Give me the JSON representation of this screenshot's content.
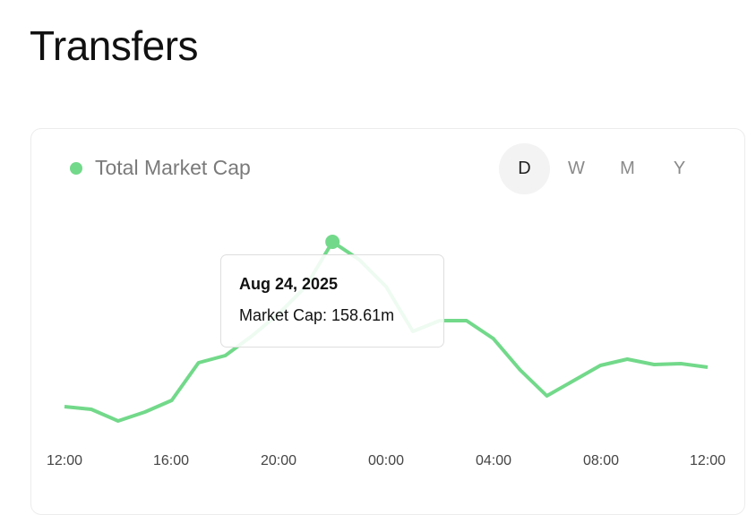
{
  "page": {
    "title": "Transfers"
  },
  "colors": {
    "series": "#72d98a",
    "active_bg": "#f3f3f3"
  },
  "periods": [
    {
      "label": "D",
      "active": true
    },
    {
      "label": "W",
      "active": false
    },
    {
      "label": "M",
      "active": false
    },
    {
      "label": "Y",
      "active": false
    }
  ],
  "tooltip": {
    "date": "Aug 24, 2025",
    "value_text": "Market Cap: 158.61m"
  },
  "chart_data": {
    "type": "line",
    "title": "",
    "xlabel": "",
    "ylabel": "",
    "legend": "top-left",
    "grid": false,
    "series": [
      {
        "name": "Total Market Cap",
        "values": [
          121.81,
          121.21,
          118.61,
          120.61,
          123.21,
          131.61,
          133.21,
          137.61,
          142.61,
          148.61,
          158.61,
          154.61,
          148.61,
          138.61,
          141.01,
          141.01,
          137.01,
          130.01,
          124.21,
          127.61,
          131.01,
          132.41,
          131.21,
          131.41,
          130.61
        ]
      }
    ],
    "x": [
      "12:00",
      "13:00",
      "14:00",
      "15:00",
      "16:00",
      "17:00",
      "18:00",
      "19:00",
      "20:00",
      "21:00",
      "22:00",
      "23:00",
      "00:00",
      "01:00",
      "02:00",
      "03:00",
      "04:00",
      "05:00",
      "06:00",
      "07:00",
      "08:00",
      "09:00",
      "10:00",
      "11:00",
      "12:00"
    ],
    "xtick_labels": [
      "12:00",
      "16:00",
      "20:00",
      "00:00",
      "04:00",
      "08:00",
      "12:00"
    ],
    "highlight_index": 10
  }
}
